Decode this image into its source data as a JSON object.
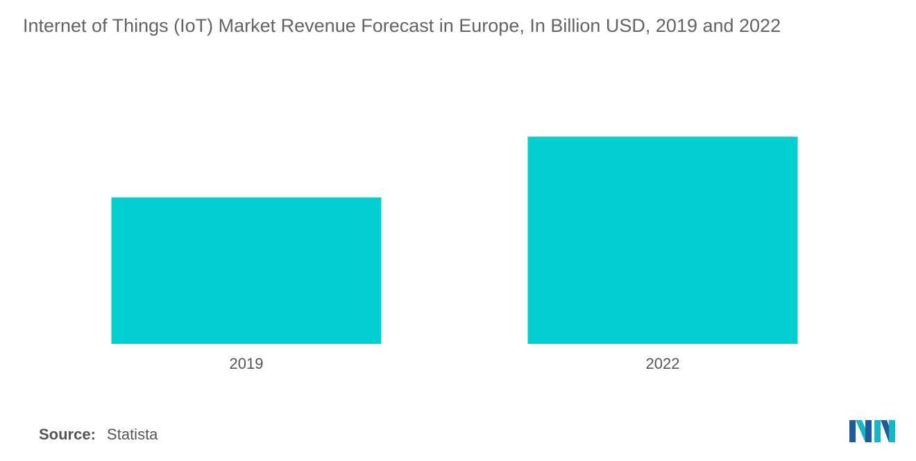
{
  "title": "Internet of Things (IoT) Market Revenue Forecast in Europe, In Billion USD, 2019 and 2022",
  "source": {
    "label": "Source:",
    "value": "Statista"
  },
  "colors": {
    "bar": "#00CED1",
    "text": "#636363",
    "logo_dark": "#1F5C99",
    "logo_light": "#18B6C3"
  },
  "chart_data": {
    "type": "bar",
    "categories": [
      "2019",
      "2022"
    ],
    "values": [
      70,
      99
    ],
    "ylim": [
      0,
      110
    ],
    "xlabel": "",
    "ylabel": "",
    "grid": false,
    "legend": "none",
    "data_labels": false
  }
}
